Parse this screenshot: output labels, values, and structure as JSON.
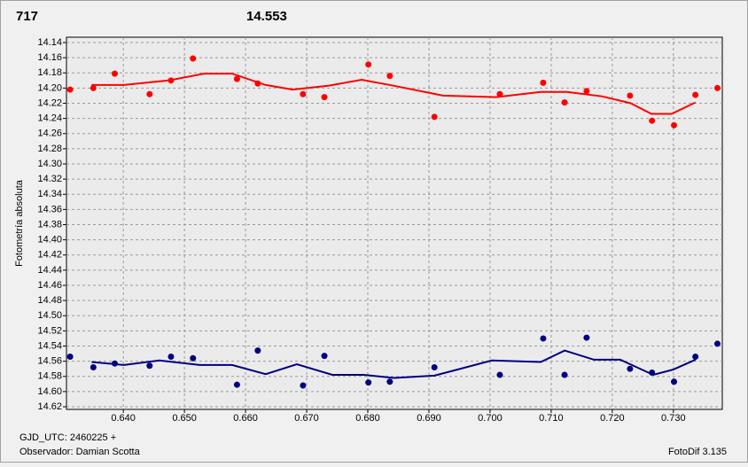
{
  "chart_data": {
    "type": "scatter",
    "title": "717",
    "title_color": "#ff0000",
    "subtitle": "14.553",
    "subtitle_color": "#1a237e",
    "ylabel": "Fotometría absoluta",
    "xlabel": "GJD_UTC: 2460225 +",
    "annotations": [
      "Observador: Damian Scotta",
      "FotoDif 3.135"
    ],
    "xlim": [
      0.6307,
      0.738
    ],
    "xticks": [
      {
        "value": 0.64,
        "label": "0.640"
      },
      {
        "value": 0.65,
        "label": "0.650"
      },
      {
        "value": 0.66,
        "label": "0.660"
      },
      {
        "value": 0.67,
        "label": "0.670"
      },
      {
        "value": 0.68,
        "label": "0.680"
      },
      {
        "value": 0.69,
        "label": "0.690"
      },
      {
        "value": 0.7,
        "label": "0.700"
      },
      {
        "value": 0.71,
        "label": "0.710"
      },
      {
        "value": 0.72,
        "label": "0.720"
      },
      {
        "value": 0.73,
        "label": "0.730"
      }
    ],
    "ylim": [
      14.14,
      14.62
    ],
    "y_inverted": true,
    "yticks": [
      14.14,
      14.16,
      14.18,
      {
        "value": 14.2,
        "label": "14.20"
      },
      14.22,
      14.24,
      14.26,
      14.28,
      {
        "value": 14.3,
        "label": "14.30"
      },
      14.32,
      14.34,
      14.36,
      14.38,
      {
        "value": 14.4,
        "label": "14.40"
      },
      14.42,
      14.44,
      14.46,
      14.48,
      {
        "value": 14.5,
        "label": "14.50"
      },
      14.52,
      14.54,
      14.56,
      14.58,
      {
        "value": 14.6,
        "label": "14.60"
      },
      14.62
    ],
    "grid": true,
    "series": [
      {
        "mode": "markers",
        "color": "#ff0000",
        "x": [
          0.6313,
          0.6351,
          0.6386,
          0.6443,
          0.6478,
          0.6514,
          0.6586,
          0.662,
          0.6694,
          0.6729,
          0.6801,
          0.6836,
          0.6909,
          0.7016,
          0.7087,
          0.7122,
          0.7158,
          0.7229,
          0.7265,
          0.7301,
          0.7336,
          0.7372
        ],
        "values": [
          14.202,
          14.2,
          14.181,
          14.208,
          14.19,
          14.161,
          14.188,
          14.194,
          14.208,
          14.212,
          14.169,
          14.184,
          14.238,
          14.208,
          14.193,
          14.219,
          14.204,
          14.21,
          14.243,
          14.249,
          14.209,
          14.2
        ]
      },
      {
        "mode": "markers",
        "color": "#000080",
        "x": [
          0.6313,
          0.6351,
          0.6386,
          0.6443,
          0.6478,
          0.6514,
          0.6586,
          0.662,
          0.6694,
          0.6729,
          0.6801,
          0.6836,
          0.6909,
          0.7016,
          0.7087,
          0.7122,
          0.7158,
          0.7229,
          0.7265,
          0.7301,
          0.7336,
          0.7372
        ],
        "values": [
          14.554,
          14.568,
          14.563,
          14.566,
          14.554,
          14.556,
          14.591,
          14.546,
          14.592,
          14.553,
          14.588,
          14.587,
          14.568,
          14.578,
          14.53,
          14.578,
          14.529,
          14.57,
          14.575,
          14.587,
          14.554,
          14.537
        ]
      },
      {
        "mode": "line",
        "color": "#ff0000",
        "x": [
          0.6348,
          0.6401,
          0.6474,
          0.6532,
          0.6578,
          0.6633,
          0.6677,
          0.6735,
          0.679,
          0.6843,
          0.6923,
          0.701,
          0.7083,
          0.7126,
          0.7184,
          0.723,
          0.7264,
          0.7297,
          0.7336
        ],
        "values": [
          14.196,
          14.196,
          14.19,
          14.181,
          14.181,
          14.196,
          14.202,
          14.197,
          14.189,
          14.197,
          14.21,
          14.212,
          14.205,
          14.205,
          14.211,
          14.22,
          14.234,
          14.234,
          14.219
        ]
      },
      {
        "mode": "line",
        "color": "#000080",
        "x": [
          0.6348,
          0.6401,
          0.6459,
          0.6525,
          0.6578,
          0.6633,
          0.6684,
          0.6742,
          0.6793,
          0.6843,
          0.6909,
          0.7003,
          0.7083,
          0.7122,
          0.717,
          0.7213,
          0.7267,
          0.73,
          0.7336
        ],
        "values": [
          14.561,
          14.565,
          14.559,
          14.565,
          14.565,
          14.577,
          14.564,
          14.578,
          14.578,
          14.582,
          14.579,
          14.559,
          14.561,
          14.546,
          14.558,
          14.558,
          14.578,
          14.571,
          14.558
        ]
      }
    ]
  }
}
